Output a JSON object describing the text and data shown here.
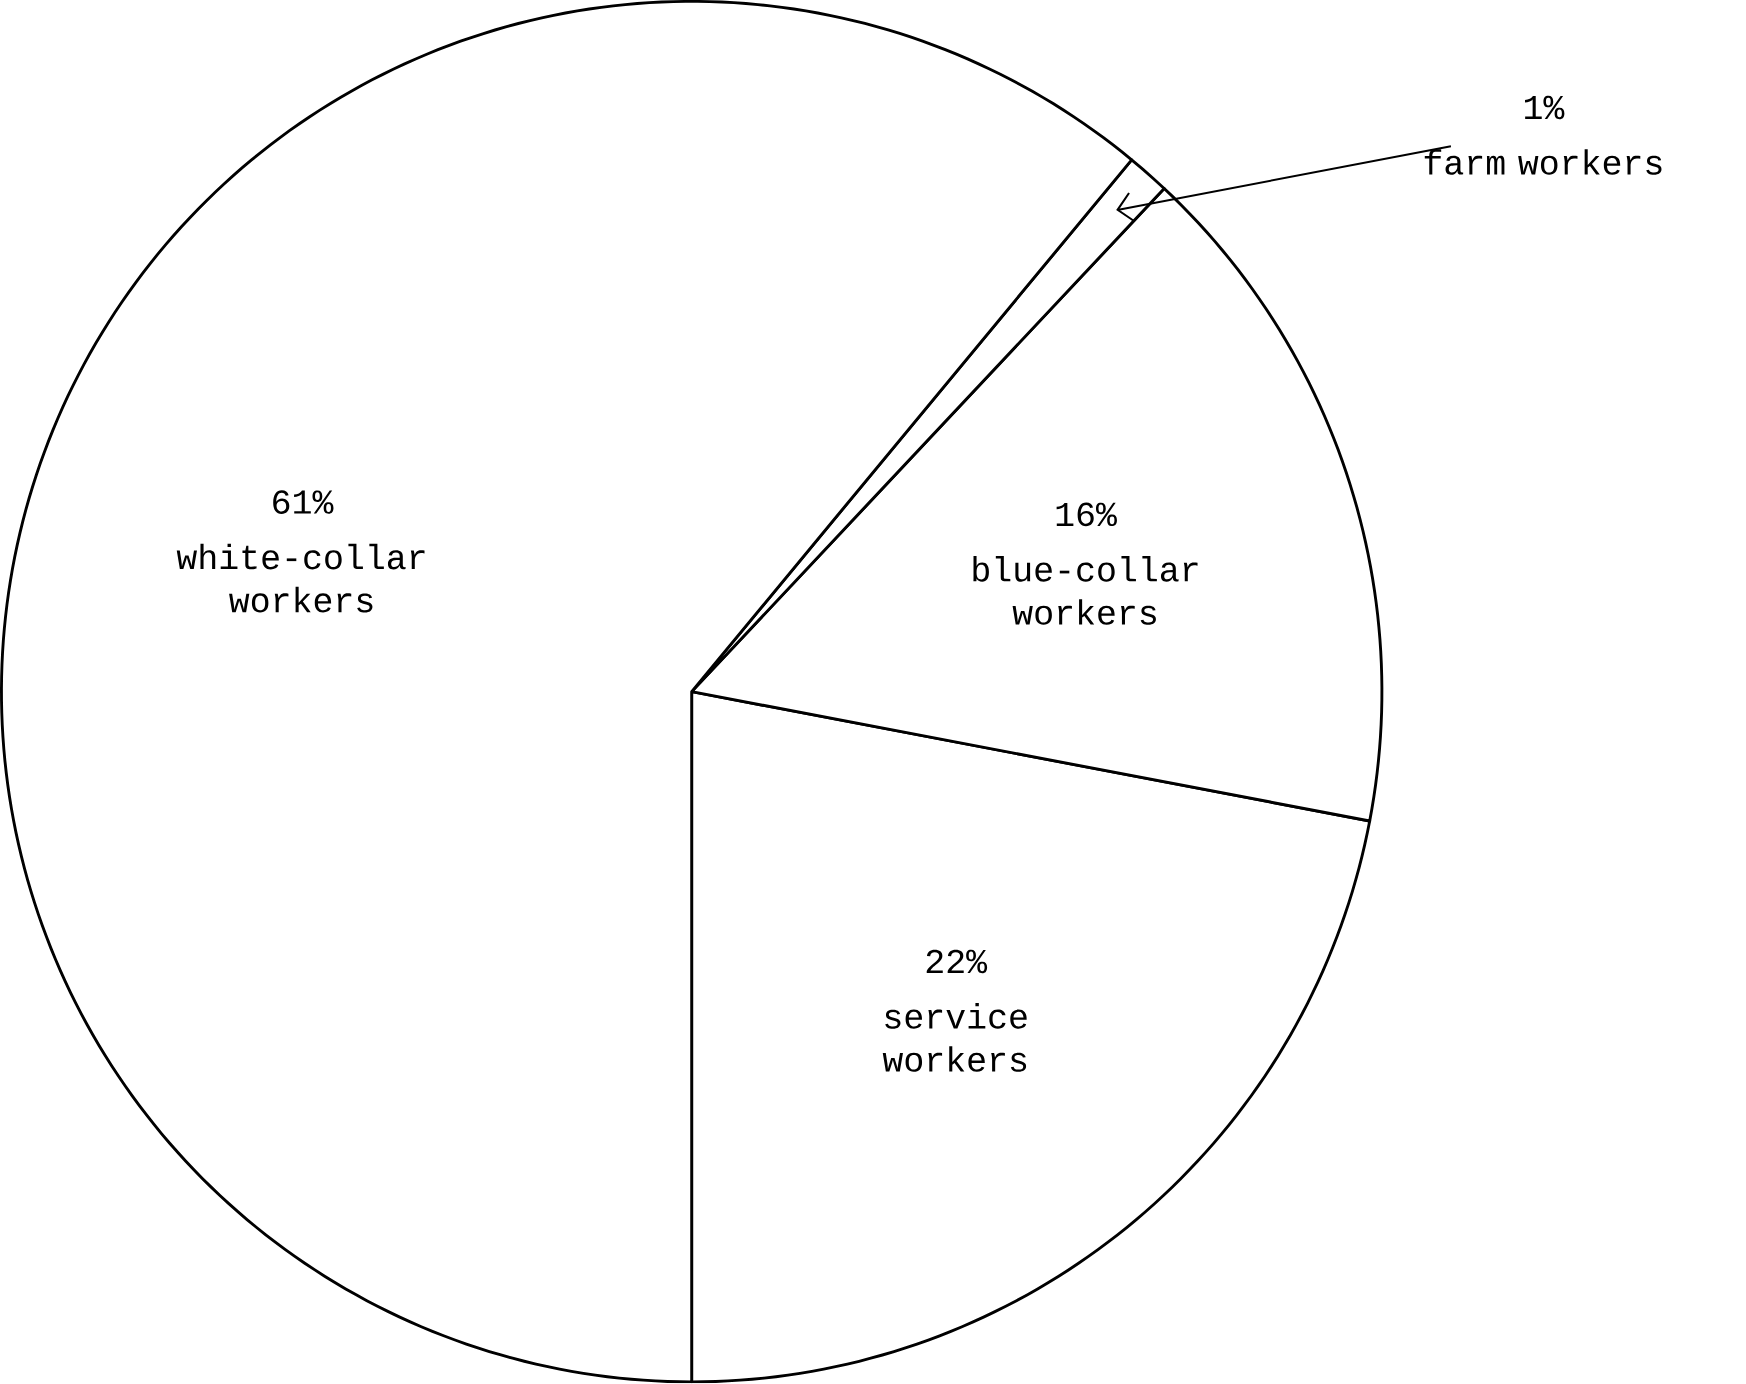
{
  "chart_data": {
    "type": "pie",
    "categories": [
      "service workers",
      "blue-collar workers",
      "farm workers",
      "white-collar workers"
    ],
    "values": [
      22,
      16,
      1,
      61
    ],
    "colors": [
      "#ffffff",
      "#ffffff",
      "#ffffff",
      "#ffffff"
    ],
    "value_labels": [
      "22%",
      "16%",
      "1%",
      "61%"
    ]
  }
}
